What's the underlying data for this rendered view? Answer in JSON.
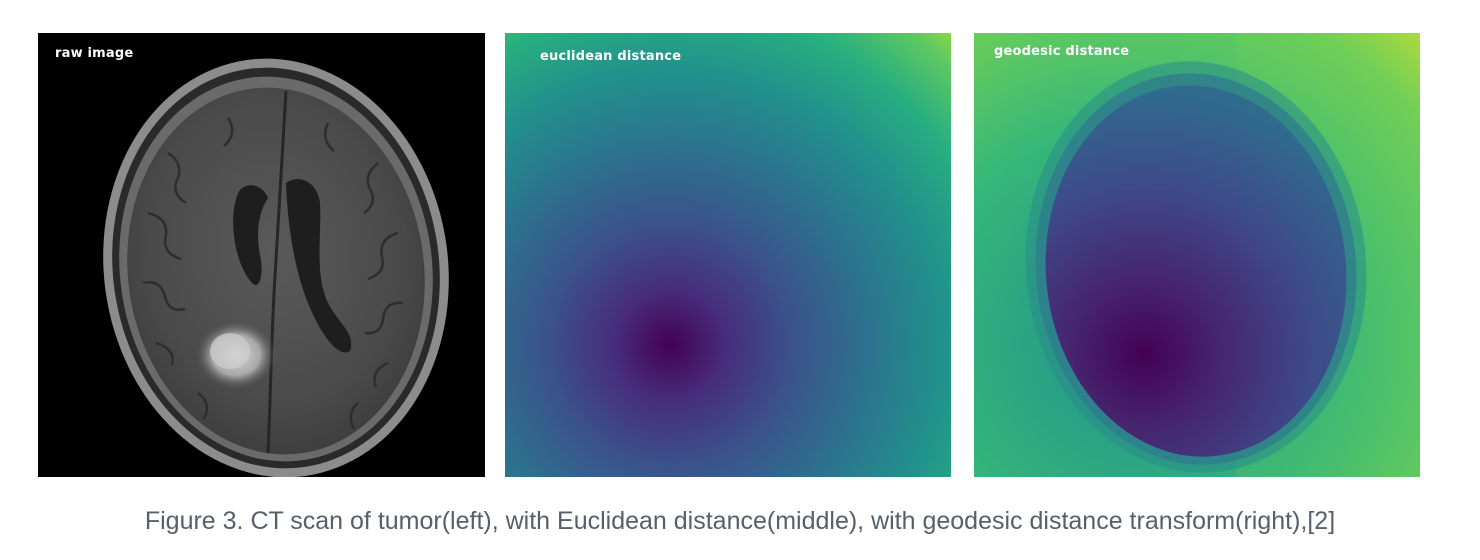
{
  "figure": {
    "panels": [
      {
        "label": "raw image",
        "content": "axial brain MRI slice with bright tumor region at lower left"
      },
      {
        "label": "euclidean distance",
        "content": "viridis distance map, minimum near lower-left"
      },
      {
        "label": "geodesic distance",
        "content": "viridis geodesic distance map shaped by head outline"
      }
    ],
    "caption": "Figure 3. CT scan of tumor(left), with Euclidean distance(middle), with geodesic distance transform(right),[2]",
    "colors": {
      "viridis_dark": "#440154",
      "viridis_mid": "#31688e",
      "viridis_teal": "#21918c",
      "viridis_green": "#5ec962",
      "viridis_yellow": "#fde725",
      "caption_text": "#55606a"
    }
  }
}
